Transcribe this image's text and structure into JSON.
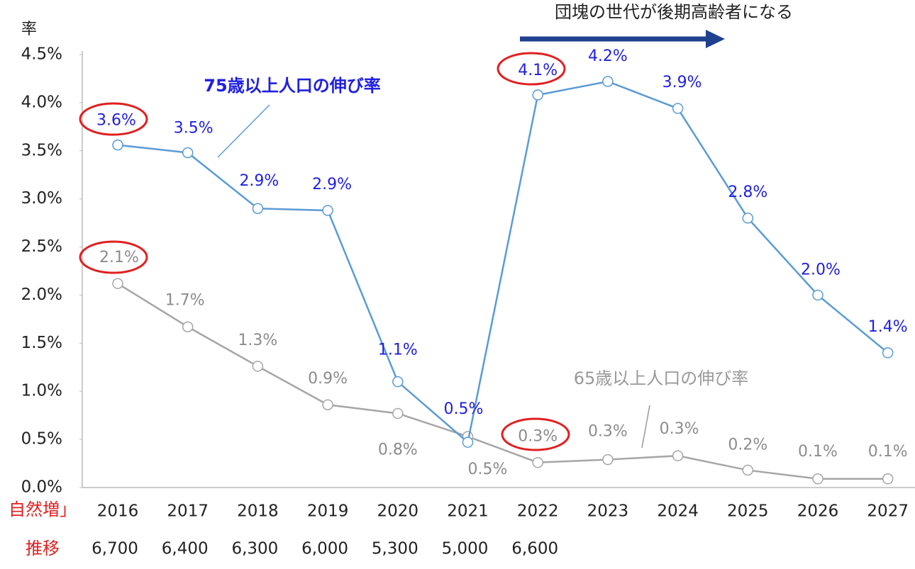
{
  "chart_data": {
    "type": "line",
    "ylabel": "率",
    "categories": [
      "2016",
      "2017",
      "2018",
      "2019",
      "2020",
      "2021",
      "2022",
      "2023",
      "2024",
      "2025",
      "2026",
      "2027"
    ],
    "series": [
      {
        "name": "75歳以上人口の伸び率",
        "color": "#5b9bd5",
        "values": [
          3.56,
          3.48,
          2.9,
          2.88,
          1.1,
          0.47,
          4.08,
          4.22,
          3.94,
          2.8,
          2.0,
          1.4
        ],
        "value_labels": [
          "3.6%",
          "3.5%",
          "2.9%",
          "2.9%",
          "1.1%",
          "0.5%",
          "4.1%",
          "4.2%",
          "3.9%",
          "2.8%",
          "2.0%",
          "1.4%"
        ]
      },
      {
        "name": "65歳以上人口の伸び率",
        "color": "#a6a6a6",
        "values": [
          2.12,
          1.67,
          1.26,
          0.86,
          0.77,
          0.53,
          0.26,
          0.29,
          0.33,
          0.18,
          0.09,
          0.09
        ],
        "value_labels": [
          "2.1%",
          "1.7%",
          "1.3%",
          "0.9%",
          "0.8%",
          "0.5%",
          "0.3%",
          "0.3%",
          "0.3%",
          "0.2%",
          "0.1%",
          "0.1%"
        ]
      }
    ],
    "ylim": [
      0,
      4.5
    ],
    "yticks": [
      {
        "value": 0,
        "label": "0.0%"
      },
      {
        "value": 0.5,
        "label": "0.5%"
      },
      {
        "value": 1,
        "label": "1.0%"
      },
      {
        "value": 1.5,
        "label": "1.5%"
      },
      {
        "value": 2,
        "label": "2.0%"
      },
      {
        "value": 2.5,
        "label": "2.5%"
      },
      {
        "value": 3,
        "label": "3.0%"
      },
      {
        "value": 3.5,
        "label": "3.5%"
      },
      {
        "value": 4,
        "label": "4.0%"
      },
      {
        "value": 4.5,
        "label": "4.5%"
      }
    ],
    "annotation": "団塊の世代が後期高齢者になる",
    "row_labels": [
      "自然増」",
      "推移"
    ],
    "row_values": [
      {
        "value": 6700,
        "label": "6,700"
      },
      {
        "value": 6400,
        "label": "6,400"
      },
      {
        "value": 6300,
        "label": "6,300"
      },
      {
        "value": 6000,
        "label": "6,000"
      },
      {
        "value": 5300,
        "label": "5,300"
      },
      {
        "value": 5000,
        "label": "5,000"
      },
      {
        "value": 6600,
        "label": "6,600"
      },
      null,
      null,
      null,
      null,
      null
    ]
  }
}
